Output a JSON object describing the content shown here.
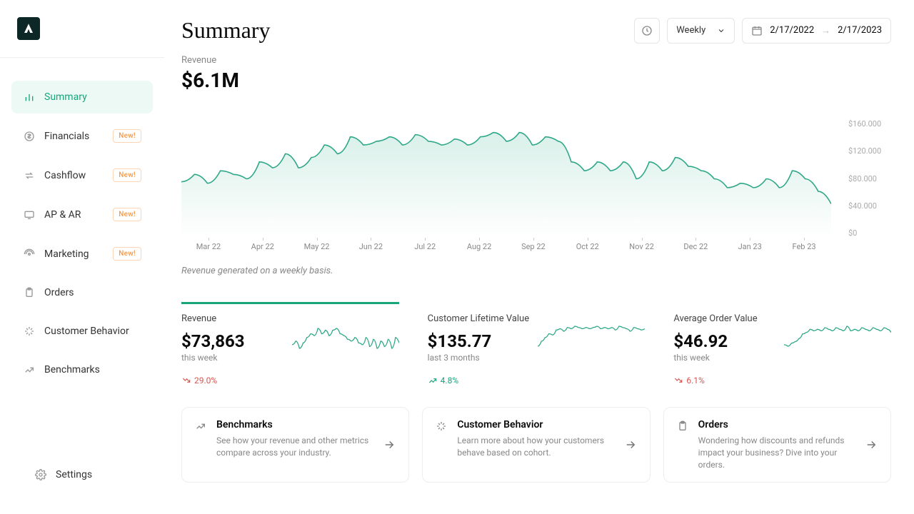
{
  "sidebar": {
    "items": [
      {
        "label": "Summary",
        "icon": "bar",
        "badge": null,
        "active": true
      },
      {
        "label": "Financials",
        "icon": "dollar",
        "badge": "New!",
        "active": false
      },
      {
        "label": "Cashflow",
        "icon": "swap",
        "badge": "New!",
        "active": false
      },
      {
        "label": "AP & AR",
        "icon": "screen",
        "badge": "New!",
        "active": false
      },
      {
        "label": "Marketing",
        "icon": "broadcast",
        "badge": "New!",
        "active": false
      },
      {
        "label": "Orders",
        "icon": "clipboard",
        "badge": null,
        "active": false
      },
      {
        "label": "Customer Behavior",
        "icon": "sparkle",
        "badge": null,
        "active": false
      },
      {
        "label": "Benchmarks",
        "icon": "trend",
        "badge": null,
        "active": false
      }
    ],
    "footer": {
      "label": "Settings",
      "icon": "gear"
    }
  },
  "header": {
    "title": "Summary",
    "period": "Weekly",
    "date_from": "2/17/2022",
    "date_to": "2/17/2023"
  },
  "main_metric": {
    "label": "Revenue",
    "value": "$6.1M"
  },
  "chart": {
    "type": "area",
    "line_color": "#2fa889",
    "fill_top_color": "#d9f0e9",
    "fill_bottom_color": "#ffffff",
    "background_color": "#ffffff",
    "y_ticks": [
      "$160.000",
      "$120.000",
      "$80.000",
      "$40.000",
      "$0"
    ],
    "x_ticks": [
      "Mar 22",
      "Apr 22",
      "May 22",
      "Jun 22",
      "Jul 22",
      "Aug 22",
      "Sep 22",
      "Oct 22",
      "Nov 22",
      "Dec 22",
      "Jan 23",
      "Feb 23"
    ],
    "ymax": 160000,
    "values": [
      76000,
      86000,
      74000,
      91000,
      86000,
      80000,
      103000,
      95000,
      114000,
      95000,
      109000,
      126000,
      114000,
      137000,
      126000,
      131000,
      137000,
      126000,
      140000,
      131000,
      126000,
      134000,
      126000,
      137000,
      143000,
      131000,
      143000,
      126000,
      137000,
      131000,
      103000,
      91000,
      103000,
      91000,
      103000,
      80000,
      103000,
      91000,
      109000,
      97000,
      91000,
      80000,
      68000,
      74000,
      68000,
      80000,
      68000,
      91000,
      80000,
      63000,
      46000
    ],
    "note": "Revenue generated on a weekly basis."
  },
  "kpis": [
    {
      "title": "Revenue",
      "value": "$73,863",
      "sub": "this week",
      "change": "29.0%",
      "direction": "down",
      "spark": [
        14,
        16,
        12,
        15,
        18,
        20,
        19,
        23,
        20,
        22,
        19,
        22,
        23,
        20,
        19,
        17,
        16,
        18,
        15,
        14,
        18,
        13,
        17,
        12,
        16,
        13,
        17,
        12,
        18,
        15
      ],
      "spark_color": "#2fa889",
      "active": true
    },
    {
      "title": "Customer Lifetime Value",
      "value": "$135.77",
      "sub": "last 3 months",
      "change": "4.8%",
      "direction": "up",
      "spark": [
        10,
        14,
        17,
        20,
        19,
        23,
        24,
        22,
        25,
        24,
        26,
        25,
        24,
        25,
        24,
        25,
        26,
        24,
        25,
        24,
        25,
        23,
        26,
        25,
        24,
        22,
        25,
        24,
        23,
        24
      ],
      "spark_color": "#2fa889",
      "active": false
    },
    {
      "title": "Average Order Value",
      "value": "$46.92",
      "sub": "this week",
      "change": "6.1%",
      "direction": "down",
      "spark": [
        15,
        14,
        16,
        17,
        19,
        22,
        23,
        25,
        24,
        25,
        24,
        26,
        25,
        24,
        26,
        25,
        24,
        27,
        24,
        25,
        24,
        26,
        25,
        24,
        26,
        25,
        24,
        26,
        25,
        23
      ],
      "spark_color": "#2fa889",
      "active": false
    }
  ],
  "cards": [
    {
      "title": "Benchmarks",
      "desc": "See how your revenue and other metrics compare across your industry.",
      "icon": "trend"
    },
    {
      "title": "Customer Behavior",
      "desc": "Learn more about how your customers behave based on cohort.",
      "icon": "sparkle"
    },
    {
      "title": "Orders",
      "desc": "Wondering how discounts and refunds impact your business? Dive into your orders.",
      "icon": "clipboard"
    }
  ],
  "colors": {
    "accent": "#18a57a",
    "danger": "#d9534f",
    "muted": "#888888",
    "border": "#e5e5e5"
  }
}
